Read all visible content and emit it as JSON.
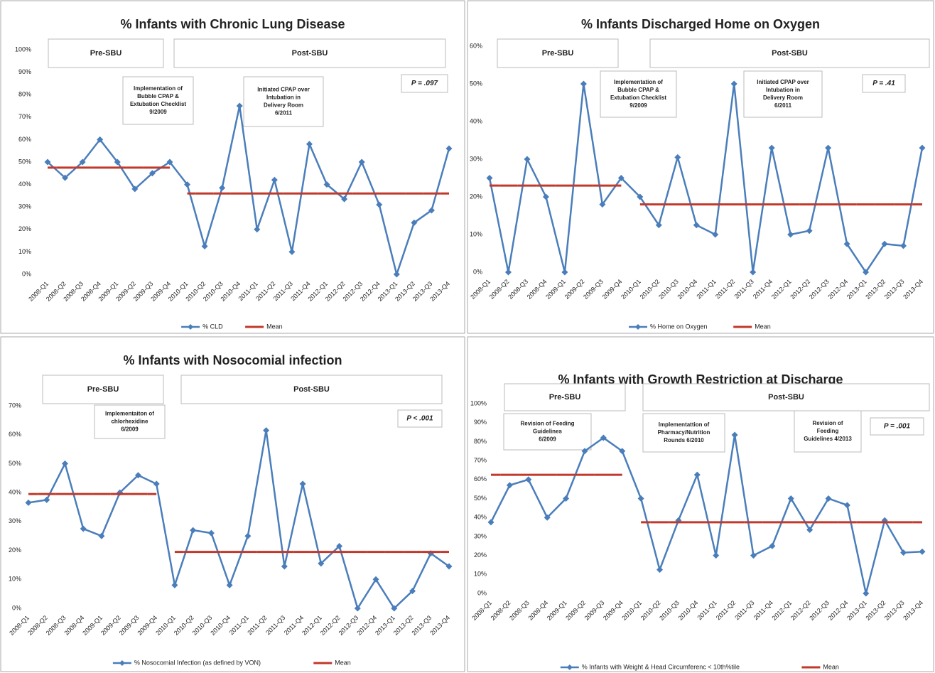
{
  "chart_data": [
    {
      "type": "line",
      "title": "% Infants with Chronic Lung Disease",
      "periods": [
        "Pre-SBU",
        "Post-SBU"
      ],
      "annotations": [
        [
          "Implementation of",
          "Bubble CPAP &",
          "Extubation Checklist",
          "9/2009"
        ],
        [
          "Initiated  CPAP over",
          "Intubation in",
          "Delivery Room",
          "6/2011"
        ]
      ],
      "p_value": "P = .097",
      "categories": [
        "2008-Q1",
        "2008-Q2",
        "2008-Q3",
        "2008-Q4",
        "2009-Q1",
        "2009-Q2",
        "2009-Q3",
        "2009-Q4",
        "2010-Q1",
        "2010-Q2",
        "2010-Q3",
        "2010-Q4",
        "2011-Q1",
        "2011-Q2",
        "2011-Q3",
        "2011-Q4",
        "2012-Q1",
        "2012-Q2",
        "2012-Q3",
        "2012-Q4",
        "2013-Q1",
        "2013-Q2",
        "2013-Q3",
        "2013-Q4"
      ],
      "series": [
        {
          "name": "% CLD",
          "color": "#4a7ebb",
          "marker": "diamond",
          "values": [
            50,
            43,
            50,
            60,
            50,
            38,
            45,
            50,
            40,
            12.5,
            38.5,
            75,
            20,
            42,
            10,
            58,
            40,
            33.5,
            50,
            31,
            0,
            23,
            28.5,
            56
          ]
        },
        {
          "name": "Mean",
          "color": "#c0392b",
          "style": "level",
          "values": [
            47.5,
            47.5,
            47.5,
            47.5,
            47.5,
            47.5,
            47.5,
            47.5,
            36,
            36,
            36,
            36,
            36,
            36,
            36,
            36,
            36,
            36,
            36,
            36,
            36,
            36,
            36,
            36
          ]
        }
      ],
      "ylim": [
        0,
        100
      ],
      "yticks": [
        {
          "value": 0,
          "label": "0%"
        },
        {
          "value": 10,
          "label": "10%"
        },
        {
          "value": 20,
          "label": "20%"
        },
        {
          "value": 30,
          "label": "30%"
        },
        {
          "value": 40,
          "label": "40%"
        },
        {
          "value": 50,
          "label": "50%"
        },
        {
          "value": 60,
          "label": "60%"
        },
        {
          "value": 70,
          "label": "70%"
        },
        {
          "value": 80,
          "label": "80%"
        },
        {
          "value": 90,
          "label": "90%"
        },
        {
          "value": 100,
          "label": "100%"
        }
      ]
    },
    {
      "type": "line",
      "title": "% Infants Discharged Home on Oxygen",
      "periods": [
        "Pre-SBU",
        "Post-SBU"
      ],
      "annotations": [
        [
          "Implementation of",
          "Bubble CPAP &",
          "Extubation Checklist",
          "9/2009"
        ],
        [
          "Initiated  CPAP over",
          "Intubation in",
          "Delivery Room",
          "6/2011"
        ]
      ],
      "p_value": "P = .41",
      "categories": [
        "2008-Q1",
        "2008-Q2",
        "2008-Q3",
        "2008-Q4",
        "2009-Q1",
        "2009-Q2",
        "2009-Q3",
        "2009-Q4",
        "2010-Q1",
        "2010-Q2",
        "2010-Q3",
        "2010-Q4",
        "2011-Q1",
        "2011-Q2",
        "2011-Q3",
        "2011-Q4",
        "2012-Q1",
        "2012-Q2",
        "2012-Q3",
        "2012-Q4",
        "2013-Q1",
        "2013-Q2",
        "2013-Q3",
        "2013-Q4"
      ],
      "series": [
        {
          "name": "% Home on Oxygen",
          "color": "#4a7ebb",
          "marker": "diamond",
          "values": [
            25,
            0,
            30,
            20,
            0,
            50,
            18,
            25,
            20,
            12.5,
            30.5,
            12.5,
            10,
            50,
            0,
            33,
            10,
            11,
            33,
            7.5,
            0,
            7.5,
            7,
            33
          ]
        },
        {
          "name": "Mean",
          "color": "#c0392b",
          "style": "level",
          "values": [
            23,
            23,
            23,
            23,
            23,
            23,
            23,
            23,
            18,
            18,
            18,
            18,
            18,
            18,
            18,
            18,
            18,
            18,
            18,
            18,
            18,
            18,
            18,
            18
          ]
        }
      ],
      "ylim": [
        0,
        60
      ],
      "yticks": [
        {
          "value": 0,
          "label": "0%"
        },
        {
          "value": 10,
          "label": "10%"
        },
        {
          "value": 20,
          "label": "20%"
        },
        {
          "value": 30,
          "label": "30%"
        },
        {
          "value": 40,
          "label": "40%"
        },
        {
          "value": 50,
          "label": "50%"
        },
        {
          "value": 60,
          "label": "60%"
        }
      ]
    },
    {
      "type": "line",
      "title": "% Infants with Nosocomial infection",
      "periods": [
        "Pre-SBU",
        "Post-SBU"
      ],
      "annotations": [
        [
          "Implementaiton of",
          "chlorhexidine",
          "6/2009"
        ]
      ],
      "p_value": "P < .001",
      "categories": [
        "2008-Q1",
        "2008-Q2",
        "2008-Q3",
        "2008-Q4",
        "2009-Q1",
        "2009-Q2",
        "2009-Q3",
        "2009-Q4",
        "2010-Q1",
        "2010-Q2",
        "2010-Q3",
        "2010-Q4",
        "2011-Q1",
        "2011-Q2",
        "2011-Q3",
        "2011-Q4",
        "2012-Q1",
        "2012-Q2",
        "2012-Q3",
        "2012-Q4",
        "2013-Q1",
        "2013-Q2",
        "2013-Q3",
        "2013-Q4"
      ],
      "series": [
        {
          "name": "% Nosocomial Infection (as defined by VON)",
          "color": "#4a7ebb",
          "marker": "diamond",
          "values": [
            36.5,
            37.5,
            50,
            27.5,
            25,
            40,
            46,
            43,
            8,
            27,
            26,
            8,
            25,
            61.5,
            14.5,
            43,
            15.5,
            21.5,
            0,
            10,
            0,
            6,
            19,
            14.5
          ]
        },
        {
          "name": "Mean",
          "color": "#c0392b",
          "style": "level",
          "values": [
            39.5,
            39.5,
            39.5,
            39.5,
            39.5,
            39.5,
            39.5,
            39.5,
            19.5,
            19.5,
            19.5,
            19.5,
            19.5,
            19.5,
            19.5,
            19.5,
            19.5,
            19.5,
            19.5,
            19.5,
            19.5,
            19.5,
            19.5,
            19.5
          ]
        }
      ],
      "ylim": [
        0,
        70
      ],
      "yticks": [
        {
          "value": 0,
          "label": "0%"
        },
        {
          "value": 10,
          "label": "10%"
        },
        {
          "value": 20,
          "label": "20%"
        },
        {
          "value": 30,
          "label": "30%"
        },
        {
          "value": 40,
          "label": "40%"
        },
        {
          "value": 50,
          "label": "50%"
        },
        {
          "value": 60,
          "label": "60%"
        },
        {
          "value": 70,
          "label": "70%"
        }
      ]
    },
    {
      "type": "line",
      "title": "% Infants with Growth Restriction at Discharge",
      "periods": [
        "Pre-SBU",
        "Post-SBU"
      ],
      "annotations": [
        [
          "Revision of Feeding",
          "Guidelines",
          "6/2009"
        ],
        [
          "Implementattion of",
          "Pharmacy/Nutrition",
          "Rounds 6/2010"
        ],
        [
          "Revision of",
          "Feeding",
          "Guidelines 4/2013"
        ]
      ],
      "p_value": "P = .001",
      "categories": [
        "2008-Q1",
        "2008-Q2",
        "2008-Q3",
        "2008-Q4",
        "2009-Q1",
        "2009-Q2",
        "2009-Q3",
        "2009-Q4",
        "2010-Q1",
        "2010-Q2",
        "2010-Q3",
        "2010-Q4",
        "2011-Q1",
        "2011-Q2",
        "2011-Q3",
        "2011-Q4",
        "2012-Q1",
        "2012-Q2",
        "2012-Q3",
        "2012-Q4",
        "2013-Q1",
        "2013-Q2",
        "2013-Q3",
        "2013-Q4"
      ],
      "series": [
        {
          "name": "% Infants with Weight & Head Circumferenc < 10th%tile",
          "color": "#4a7ebb",
          "marker": "diamond",
          "values": [
            37.5,
            57,
            60,
            40,
            50,
            75,
            82,
            75,
            50,
            12.5,
            38.5,
            62.5,
            20,
            83.5,
            20,
            25,
            50,
            33.5,
            50,
            46.5,
            0,
            38.5,
            21.5,
            22
          ]
        },
        {
          "name": "Mean",
          "color": "#c0392b",
          "style": "level",
          "values": [
            62.5,
            62.5,
            62.5,
            62.5,
            62.5,
            62.5,
            62.5,
            62.5,
            37.5,
            37.5,
            37.5,
            37.5,
            37.5,
            37.5,
            37.5,
            37.5,
            37.5,
            37.5,
            37.5,
            37.5,
            37.5,
            37.5,
            37.5,
            37.5
          ]
        }
      ],
      "ylim": [
        0,
        100
      ],
      "yticks": [
        {
          "value": 0,
          "label": "0%"
        },
        {
          "value": 10,
          "label": "10%"
        },
        {
          "value": 20,
          "label": "20%"
        },
        {
          "value": 30,
          "label": "30%"
        },
        {
          "value": 40,
          "label": "40%"
        },
        {
          "value": 50,
          "label": "50%"
        },
        {
          "value": 60,
          "label": "60%"
        },
        {
          "value": 70,
          "label": "70%"
        },
        {
          "value": 80,
          "label": "80%"
        },
        {
          "value": 90,
          "label": "90%"
        },
        {
          "value": 100,
          "label": "100%"
        }
      ]
    }
  ]
}
